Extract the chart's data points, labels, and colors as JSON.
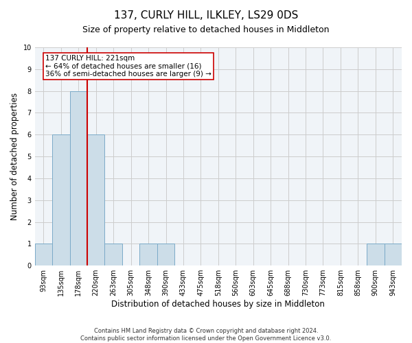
{
  "title": "137, CURLY HILL, ILKLEY, LS29 0DS",
  "subtitle": "Size of property relative to detached houses in Middleton",
  "xlabel": "Distribution of detached houses by size in Middleton",
  "ylabel": "Number of detached properties",
  "categories": [
    "93sqm",
    "135sqm",
    "178sqm",
    "220sqm",
    "263sqm",
    "305sqm",
    "348sqm",
    "390sqm",
    "433sqm",
    "475sqm",
    "518sqm",
    "560sqm",
    "603sqm",
    "645sqm",
    "688sqm",
    "730sqm",
    "773sqm",
    "815sqm",
    "858sqm",
    "900sqm",
    "943sqm"
  ],
  "values": [
    1,
    6,
    8,
    6,
    1,
    0,
    1,
    1,
    0,
    0,
    0,
    0,
    0,
    0,
    0,
    0,
    0,
    0,
    0,
    1,
    1
  ],
  "bar_color": "#ccdde8",
  "bar_edge_color": "#7aaac8",
  "highlight_line_color": "#cc0000",
  "annotation_text": "137 CURLY HILL: 221sqm\n← 64% of detached houses are smaller (16)\n36% of semi-detached houses are larger (9) →",
  "annotation_box_color": "#ffffff",
  "annotation_box_edge": "#cc0000",
  "ylim": [
    0,
    10
  ],
  "yticks": [
    0,
    1,
    2,
    3,
    4,
    5,
    6,
    7,
    8,
    9,
    10
  ],
  "grid_color": "#cccccc",
  "bg_color": "#f0f4f8",
  "footer_line1": "Contains HM Land Registry data © Crown copyright and database right 2024.",
  "footer_line2": "Contains public sector information licensed under the Open Government Licence v3.0.",
  "title_fontsize": 11,
  "subtitle_fontsize": 9,
  "xlabel_fontsize": 8.5,
  "ylabel_fontsize": 8.5,
  "tick_fontsize": 7,
  "annotation_fontsize": 7.5,
  "footer_fontsize": 6
}
